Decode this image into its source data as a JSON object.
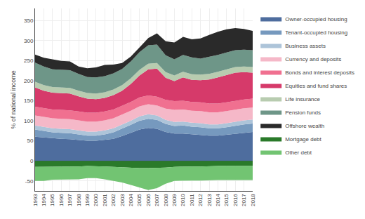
{
  "chart_data": {
    "type": "area",
    "stacked": true,
    "ylabel": "% of national income",
    "x": [
      1993,
      1994,
      1995,
      1996,
      1997,
      1998,
      1999,
      2000,
      2001,
      2002,
      2003,
      2004,
      2005,
      2006,
      2007,
      2008,
      2009,
      2010,
      2011,
      2012,
      2013,
      2014,
      2015,
      2016,
      2017,
      2018
    ],
    "xlim": [
      1993,
      2018
    ],
    "xticks": [
      1993,
      1994,
      1995,
      1996,
      1997,
      1998,
      1999,
      2000,
      2001,
      2002,
      2003,
      2004,
      2005,
      2006,
      2007,
      2008,
      2009,
      2010,
      2011,
      2012,
      2013,
      2014,
      2015,
      2016,
      2017,
      2018
    ],
    "ylim": [
      -75,
      380
    ],
    "yticks": [
      -50,
      0,
      50,
      100,
      150,
      200,
      250,
      300,
      350
    ],
    "grid": true,
    "legend": "right",
    "series": [
      {
        "name": "Owner-occupied housing",
        "color": "#4e6d9e",
        "values": [
          60,
          58,
          56,
          55,
          54,
          52,
          50,
          50,
          52,
          55,
          62,
          70,
          78,
          82,
          80,
          72,
          68,
          68,
          66,
          65,
          63,
          63,
          65,
          68,
          70,
          72
        ]
      },
      {
        "name": "Tenant-occupied housing",
        "color": "#7699be",
        "values": [
          18,
          16,
          15,
          15,
          15,
          14,
          13,
          13,
          14,
          16,
          18,
          20,
          22,
          23,
          22,
          20,
          19,
          20,
          19,
          19,
          18,
          18,
          19,
          20,
          21,
          21
        ]
      },
      {
        "name": "Business assets",
        "color": "#adc4d9",
        "values": [
          10,
          10,
          10,
          10,
          10,
          10,
          10,
          10,
          10,
          10,
          10,
          10,
          11,
          11,
          11,
          10,
          10,
          10,
          10,
          10,
          10,
          10,
          10,
          10,
          10,
          10
        ]
      },
      {
        "name": "Currency and deposits",
        "color": "#f5b8c8",
        "values": [
          25,
          25,
          25,
          25,
          25,
          25,
          25,
          25,
          25,
          25,
          25,
          25,
          25,
          25,
          25,
          28,
          30,
          30,
          30,
          30,
          30,
          30,
          30,
          30,
          30,
          30
        ]
      },
      {
        "name": "Bonds and interest deposits",
        "color": "#f07090",
        "values": [
          22,
          22,
          22,
          22,
          22,
          22,
          22,
          22,
          22,
          22,
          22,
          22,
          22,
          22,
          22,
          22,
          22,
          22,
          22,
          22,
          22,
          22,
          22,
          22,
          22,
          22
        ]
      },
      {
        "name": "Equities and fund shares",
        "color": "#d63a6a",
        "values": [
          48,
          44,
          42,
          42,
          42,
          38,
          35,
          34,
          34,
          36,
          38,
          45,
          55,
          65,
          70,
          55,
          50,
          58,
          55,
          55,
          60,
          65,
          68,
          70,
          68,
          65
        ]
      },
      {
        "name": "Life insurance",
        "color": "#b8ccb0",
        "values": [
          14,
          14,
          14,
          14,
          14,
          14,
          14,
          14,
          14,
          14,
          14,
          14,
          14,
          14,
          14,
          14,
          14,
          14,
          14,
          14,
          14,
          14,
          14,
          14,
          14,
          14
        ]
      },
      {
        "name": "Pension funds",
        "color": "#6e9688",
        "values": [
          48,
          46,
          44,
          44,
          44,
          42,
          40,
          40,
          40,
          40,
          40,
          42,
          44,
          46,
          46,
          42,
          40,
          42,
          42,
          40,
          42,
          42,
          42,
          42,
          42,
          42
        ]
      },
      {
        "name": "Offshore wealth",
        "color": "#2a2a2a",
        "values": [
          20,
          22,
          25,
          22,
          22,
          18,
          22,
          25,
          28,
          22,
          15,
          12,
          12,
          18,
          28,
          35,
          42,
          45,
          45,
          50,
          55,
          58,
          58,
          55,
          52,
          48
        ]
      },
      {
        "name": "Mortgage debt",
        "color": "#2a7a2a",
        "values": [
          -15,
          -15,
          -14,
          -14,
          -14,
          -14,
          -13,
          -13,
          -14,
          -15,
          -16,
          -18,
          -18,
          -18,
          -18,
          -17,
          -15,
          -14,
          -14,
          -14,
          -13,
          -13,
          -13,
          -13,
          -13,
          -13
        ]
      },
      {
        "name": "Other debt",
        "color": "#72c472",
        "values": [
          -35,
          -35,
          -33,
          -33,
          -32,
          -32,
          -30,
          -30,
          -32,
          -35,
          -38,
          -42,
          -48,
          -55,
          -50,
          -40,
          -35,
          -35,
          -35,
          -35,
          -35,
          -35,
          -35,
          -35,
          -35,
          -35
        ]
      }
    ]
  }
}
